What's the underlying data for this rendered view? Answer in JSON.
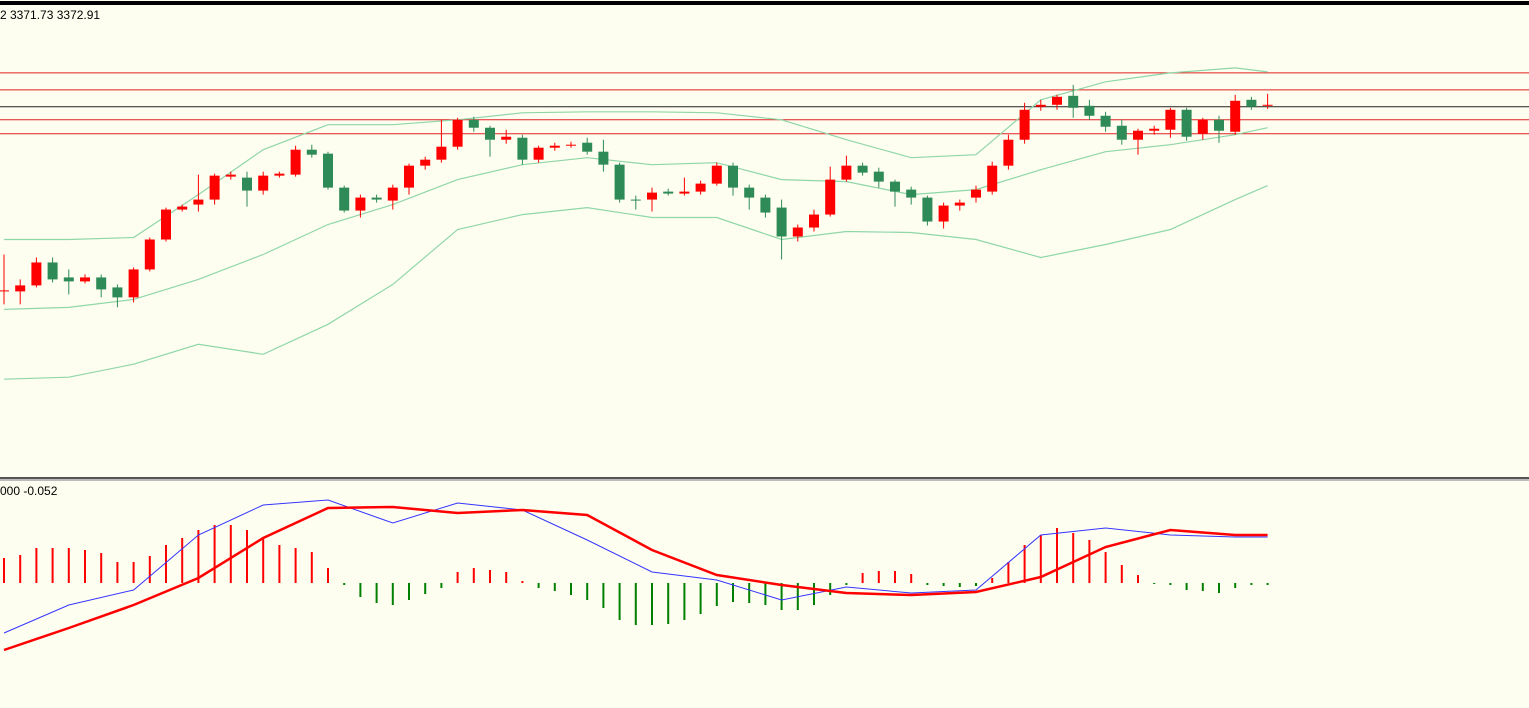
{
  "chart_data": [
    {
      "type": "candlestick",
      "header": "2 3371.73 3372.91",
      "ylim": [
        3187.5,
        3424
      ],
      "up_color": "#ff0000",
      "down_color": "#2e8b57",
      "ohlc": [
        [
          3281,
          3299,
          3274,
          3281
        ],
        [
          3280.5,
          3286.5,
          3274,
          3283.5
        ],
        [
          3283.5,
          3297.5,
          3282.5,
          3295
        ],
        [
          3295,
          3297.5,
          3285,
          3286.5
        ],
        [
          3287.5,
          3291.5,
          3279,
          3285.5
        ],
        [
          3285.5,
          3289,
          3284.5,
          3287.5
        ],
        [
          3287.5,
          3289,
          3277.5,
          3281.5
        ],
        [
          3282.5,
          3284,
          3272.5,
          3277.5
        ],
        [
          3277.5,
          3292.5,
          3275,
          3291.5
        ],
        [
          3291.5,
          3307.5,
          3290.5,
          3306.5
        ],
        [
          3306.5,
          3322.5,
          3305.5,
          3321.5
        ],
        [
          3321.5,
          3324,
          3320.5,
          3323
        ],
        [
          3324,
          3339,
          3320.5,
          3326.5
        ],
        [
          3326.5,
          3339.5,
          3324,
          3338.5
        ],
        [
          3338,
          3340.5,
          3336.5,
          3339
        ],
        [
          3337.5,
          3340.5,
          3323,
          3331
        ],
        [
          3331,
          3340.5,
          3329,
          3338.5
        ],
        [
          3338.5,
          3340.5,
          3337.5,
          3339.5
        ],
        [
          3339,
          3353.5,
          3338,
          3351.5
        ],
        [
          3351.5,
          3354,
          3347.5,
          3349
        ],
        [
          3349.5,
          3350.5,
          3331.5,
          3332.5
        ],
        [
          3332.5,
          3333.5,
          3320,
          3321
        ],
        [
          3321,
          3329,
          3317.5,
          3327.5
        ],
        [
          3327.5,
          3329,
          3325,
          3326.5
        ],
        [
          3326,
          3334,
          3321.5,
          3332.5
        ],
        [
          3332.5,
          3344.5,
          3329,
          3343.5
        ],
        [
          3343.5,
          3348,
          3341.5,
          3346.5
        ],
        [
          3346.5,
          3366.5,
          3345,
          3353
        ],
        [
          3353,
          3367.5,
          3351.5,
          3366.5
        ],
        [
          3366.5,
          3368,
          3360.5,
          3362.5
        ],
        [
          3362.5,
          3363.5,
          3348,
          3356.5
        ],
        [
          3356.5,
          3361.5,
          3354.5,
          3358
        ],
        [
          3357.5,
          3359,
          3344,
          3346.5
        ],
        [
          3346.5,
          3353.5,
          3345,
          3352.5
        ],
        [
          3352.5,
          3355,
          3351,
          3353.5
        ],
        [
          3353.5,
          3355.5,
          3352.5,
          3354
        ],
        [
          3355,
          3357.5,
          3349,
          3350.5
        ],
        [
          3350.5,
          3356.5,
          3340.5,
          3344
        ],
        [
          3344,
          3345,
          3325,
          3326.5
        ],
        [
          3326.5,
          3328.5,
          3321.5,
          3326
        ],
        [
          3326.5,
          3332.5,
          3320.5,
          3330
        ],
        [
          3330.5,
          3332,
          3328.5,
          3329.5
        ],
        [
          3329.5,
          3337.5,
          3328.5,
          3330.5
        ],
        [
          3330.5,
          3336,
          3329,
          3334.5
        ],
        [
          3334.5,
          3345,
          3333.5,
          3343.5
        ],
        [
          3343.5,
          3345,
          3328.5,
          3332.5
        ],
        [
          3332.5,
          3334,
          3321.5,
          3327.5
        ],
        [
          3327.5,
          3329,
          3317.5,
          3320
        ],
        [
          3322.5,
          3326.5,
          3296.5,
          3308
        ],
        [
          3308,
          3314,
          3305.5,
          3312.5
        ],
        [
          3312.5,
          3321.5,
          3310.5,
          3319
        ],
        [
          3319,
          3343,
          3318,
          3336.5
        ],
        [
          3336.5,
          3348.5,
          3335.5,
          3343.5
        ],
        [
          3343.5,
          3345,
          3338.5,
          3340
        ],
        [
          3340.5,
          3342.5,
          3332.5,
          3335.5
        ],
        [
          3335.5,
          3336.5,
          3323,
          3330.5
        ],
        [
          3331.5,
          3333,
          3324,
          3327.5
        ],
        [
          3327.5,
          3328.5,
          3313.5,
          3315.5
        ],
        [
          3315.5,
          3325,
          3312,
          3323.5
        ],
        [
          3323.5,
          3326.5,
          3321,
          3325
        ],
        [
          3327.5,
          3333.5,
          3325,
          3331.5
        ],
        [
          3330.5,
          3345.5,
          3329,
          3343.5
        ],
        [
          3343.5,
          3359,
          3341.5,
          3356.5
        ],
        [
          3356.5,
          3375,
          3354.5,
          3371.5
        ],
        [
          3373,
          3376.5,
          3371,
          3374
        ],
        [
          3374,
          3379,
          3371.5,
          3378
        ],
        [
          3378.5,
          3384,
          3367.5,
          3372.5
        ],
        [
          3373.5,
          3376.5,
          3366.5,
          3368.5
        ],
        [
          3368.5,
          3370.5,
          3360.5,
          3363
        ],
        [
          3363.5,
          3366.5,
          3354,
          3356.5
        ],
        [
          3356.5,
          3362,
          3349,
          3361
        ],
        [
          3361,
          3363.5,
          3359,
          3362
        ],
        [
          3361.5,
          3372.5,
          3357.5,
          3371.5
        ],
        [
          3371.5,
          3372.5,
          3356,
          3358
        ],
        [
          3359.5,
          3367.5,
          3356.5,
          3366.5
        ],
        [
          3366.5,
          3368.5,
          3355,
          3361
        ],
        [
          3360.5,
          3379,
          3359,
          3376
        ],
        [
          3376.5,
          3378,
          3371.5,
          3373
        ],
        [
          3373.5,
          3379.5,
          3372,
          3374
        ]
      ],
      "bands": {
        "color": "#8fd6a8",
        "x": [
          0,
          4,
          8,
          12,
          16,
          20,
          24,
          28,
          32,
          36,
          40,
          44,
          48,
          52,
          56,
          60,
          64,
          68,
          72,
          76,
          78
        ],
        "upper": [
          3306.5,
          3306.5,
          3307.5,
          3329,
          3351.5,
          3364,
          3364,
          3366.5,
          3370,
          3370.5,
          3370.5,
          3370,
          3366.5,
          3356.5,
          3347.5,
          3349,
          3376.5,
          3385.5,
          3390,
          3392.5,
          3390.5
        ],
        "middle": [
          3271.5,
          3272.5,
          3276.5,
          3286.5,
          3299,
          3314,
          3324,
          3336.5,
          3344,
          3347.5,
          3344,
          3345,
          3336.5,
          3335.5,
          3329,
          3331.5,
          3341.5,
          3350.5,
          3354,
          3359,
          3362.5
        ],
        "lower": [
          3236.5,
          3237.5,
          3244,
          3254,
          3249,
          3264,
          3284,
          3311.5,
          3319,
          3322.5,
          3317.5,
          3317.5,
          3306.5,
          3310.5,
          3310,
          3306.5,
          3297.5,
          3304,
          3311.5,
          3326.5,
          3333.5
        ]
      },
      "levels": [
        {
          "value": 3390,
          "color": "#e02020"
        },
        {
          "value": 3381.5,
          "color": "#e02020"
        },
        {
          "value": 3373,
          "color": "#202020"
        },
        {
          "value": 3366.5,
          "color": "#e02020"
        },
        {
          "value": 3359.5,
          "color": "#e02020"
        }
      ]
    },
    {
      "type": "macd",
      "header": "000 -0.052",
      "ylim": [
        -12.3,
        10.1
      ],
      "up_color": "#ff0000",
      "down_color": "#008000",
      "histogram": [
        2.5,
        2.8,
        3.5,
        3.5,
        3.5,
        3.3,
        3.0,
        2.1,
        2.1,
        2.7,
        3.8,
        4.5,
        5.3,
        5.8,
        5.8,
        5.3,
        4.5,
        3.8,
        3.5,
        3.1,
        1.5,
        -0.2,
        -1.4,
        -2.0,
        -2.2,
        -1.7,
        -1.1,
        -0.5,
        1.1,
        1.5,
        1.3,
        1.1,
        0.2,
        -0.5,
        -0.8,
        -1.2,
        -1.7,
        -2.5,
        -3.7,
        -4.2,
        -4.2,
        -4.1,
        -3.7,
        -3.1,
        -2.3,
        -1.9,
        -2.0,
        -2.2,
        -2.7,
        -2.7,
        -2.2,
        -1.2,
        -0.2,
        1.0,
        1.2,
        1.2,
        0.9,
        -0.2,
        -0.3,
        -0.4,
        -0.3,
        0.5,
        2.1,
        3.8,
        4.8,
        5.5,
        5.0,
        4.3,
        3.1,
        1.8,
        0.8,
        -0.1,
        -0.2,
        -0.7,
        -0.8,
        -1.0,
        -0.5,
        -0.2,
        -0.2
      ],
      "x": [
        0,
        4,
        8,
        12,
        16,
        20,
        24,
        28,
        32,
        36,
        40,
        44,
        48,
        52,
        56,
        60,
        64,
        68,
        72,
        76,
        78
      ],
      "series": [
        {
          "color": "#3535ff",
          "values": [
            -5.0,
            -2.2,
            -0.7,
            4.8,
            7.8,
            8.3,
            6.0,
            8.0,
            7.3,
            4.3,
            1.1,
            0.3,
            -1.7,
            -0.4,
            -1.0,
            -0.7,
            4.8,
            5.5,
            4.8,
            4.6,
            4.6
          ]
        },
        {
          "color": "#ff0000",
          "values": [
            -6.7,
            -4.5,
            -2.2,
            0.5,
            4.5,
            7.5,
            7.6,
            7.0,
            7.3,
            6.8,
            3.3,
            0.8,
            -0.2,
            -1.0,
            -1.2,
            -0.9,
            0.6,
            3.6,
            5.3,
            4.8,
            4.8
          ]
        }
      ]
    }
  ]
}
